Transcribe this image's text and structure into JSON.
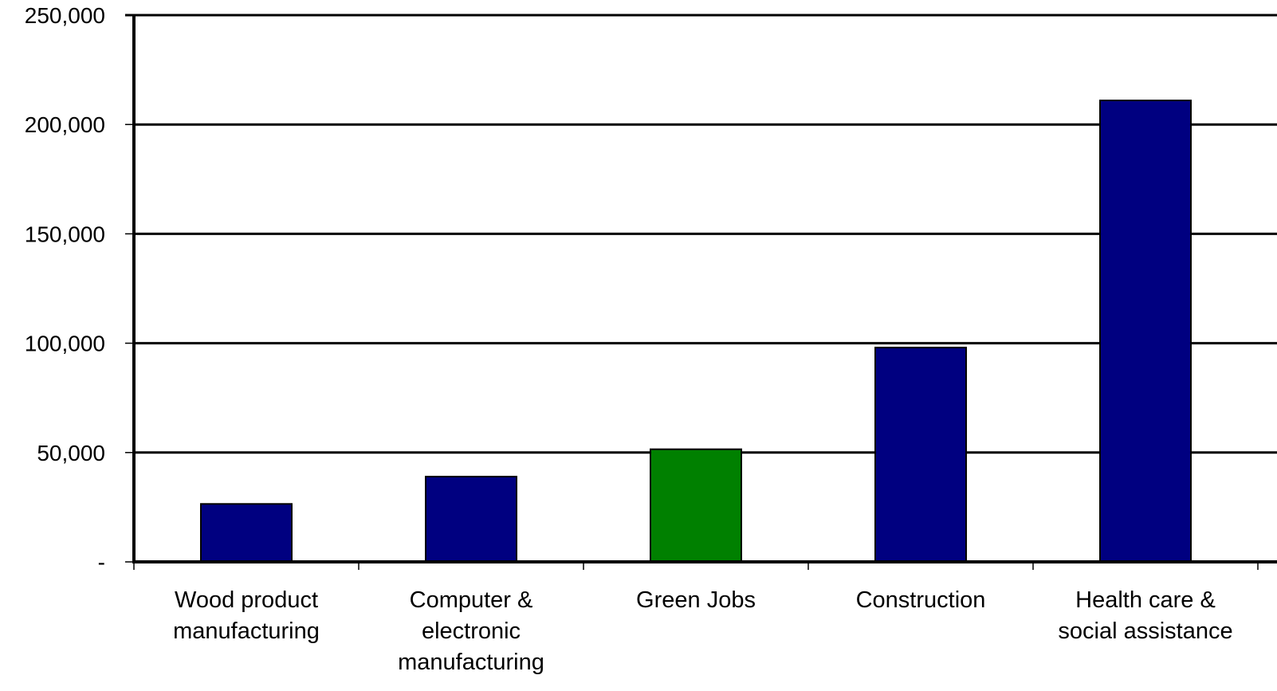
{
  "chart_data": {
    "type": "bar",
    "categories": [
      [
        "Wood product",
        "manufacturing"
      ],
      [
        "Computer &",
        "electronic",
        "manufacturing"
      ],
      [
        "Green Jobs"
      ],
      [
        "Construction"
      ],
      [
        "Health care &",
        "social assistance"
      ]
    ],
    "values": [
      26500,
      39000,
      51500,
      98000,
      211000
    ],
    "bar_colors": [
      "#000080",
      "#000080",
      "#008000",
      "#000080",
      "#000080"
    ],
    "ylim": [
      0,
      250000
    ],
    "yticks": [
      0,
      50000,
      100000,
      150000,
      200000,
      250000
    ],
    "ytick_labels": [
      "-",
      "50,000",
      "100,000",
      "150,000",
      "200,000",
      "250,000"
    ],
    "title": "",
    "xlabel": "",
    "ylabel": "",
    "grid": true,
    "legend": "none"
  }
}
